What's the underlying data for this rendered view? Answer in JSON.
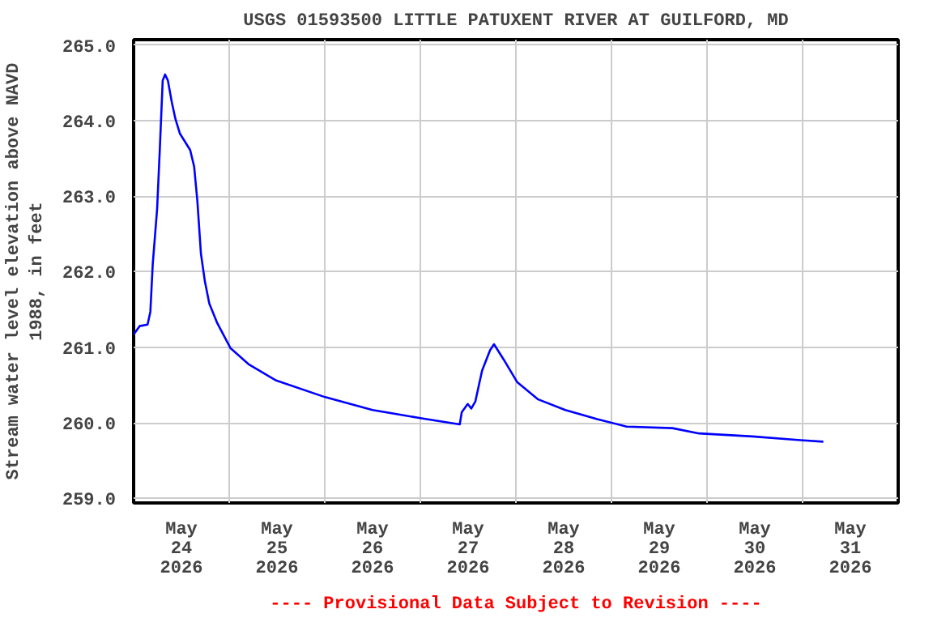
{
  "chart_data": {
    "type": "line",
    "title": "USGS 01593500 LITTLE PATUXENT RIVER AT GUILFORD, MD",
    "ylabel": "Stream water level elevation above NAVD\n1988, in feet",
    "annotations": [
      "---- Provisional Data Subject to Revision ----"
    ],
    "x": [
      "2026-05-24T00:00",
      "2026-05-24T01:30",
      "2026-05-24T03:30",
      "2026-05-24T04:12",
      "2026-05-24T04:48",
      "2026-05-24T05:54",
      "2026-05-24T06:36",
      "2026-05-24T07:18",
      "2026-05-24T07:54",
      "2026-05-24T08:36",
      "2026-05-24T09:36",
      "2026-05-24T10:30",
      "2026-05-24T11:36",
      "2026-05-24T12:54",
      "2026-05-24T14:12",
      "2026-05-24T15:12",
      "2026-05-24T16:00",
      "2026-05-24T16:54",
      "2026-05-24T17:54",
      "2026-05-24T19:00",
      "2026-05-24T21:00",
      "2026-05-25T00:18",
      "2026-05-25T05:00",
      "2026-05-25T11:48",
      "2026-05-26T00:06",
      "2026-05-26T12:00",
      "2026-05-27T00:18",
      "2026-05-27T09:54",
      "2026-05-27T10:24",
      "2026-05-27T11:54",
      "2026-05-27T12:48",
      "2026-05-27T13:48",
      "2026-05-27T15:30",
      "2026-05-27T17:30",
      "2026-05-27T18:30",
      "2026-05-27T20:54",
      "2026-05-28T00:18",
      "2026-05-28T05:36",
      "2026-05-28T12:24",
      "2026-05-28T20:24",
      "2026-05-29T03:48",
      "2026-05-29T15:18",
      "2026-05-29T22:00",
      "2026-05-30T11:24",
      "2026-05-30T23:30",
      "2026-05-31T05:12"
    ],
    "series": [
      {
        "color": "#0000ff",
        "values": [
          261.17,
          261.28,
          261.3,
          261.47,
          262.1,
          262.83,
          263.65,
          264.53,
          264.61,
          264.53,
          264.24,
          264.02,
          263.83,
          263.72,
          263.61,
          263.39,
          262.94,
          262.24,
          261.87,
          261.58,
          261.32,
          260.99,
          260.77,
          260.56,
          260.34,
          260.17,
          260.06,
          259.98,
          260.14,
          260.25,
          260.19,
          260.28,
          260.69,
          260.96,
          261.04,
          260.84,
          260.54,
          260.31,
          260.17,
          260.05,
          259.95,
          259.93,
          259.86,
          259.82,
          259.77,
          259.75
        ]
      }
    ],
    "xlim": [
      "2026-05-24T00:00",
      "2026-06-01T00:00"
    ],
    "xticks": [
      {
        "value": "2026-05-24T12:00",
        "label": "May\n24\n2026"
      },
      {
        "value": "2026-05-25T12:00",
        "label": "May\n25\n2026"
      },
      {
        "value": "2026-05-26T12:00",
        "label": "May\n26\n2026"
      },
      {
        "value": "2026-05-27T12:00",
        "label": "May\n27\n2026"
      },
      {
        "value": "2026-05-28T12:00",
        "label": "May\n28\n2026"
      },
      {
        "value": "2026-05-29T12:00",
        "label": "May\n29\n2026"
      },
      {
        "value": "2026-05-30T12:00",
        "label": "May\n30\n2026"
      },
      {
        "value": "2026-05-31T12:00",
        "label": "May\n31\n2026"
      },
      {
        "value": "2026-05-25T00:00",
        "label": null
      },
      {
        "value": "2026-05-26T00:00",
        "label": null
      },
      {
        "value": "2026-05-27T00:00",
        "label": null
      },
      {
        "value": "2026-05-28T00:00",
        "label": null
      },
      {
        "value": "2026-05-29T00:00",
        "label": null
      },
      {
        "value": "2026-05-30T00:00",
        "label": null
      },
      {
        "value": "2026-05-31T00:00",
        "label": null
      }
    ],
    "ylim": [
      258.94,
      265.07
    ],
    "yticks": [
      {
        "value": 259,
        "label": "259.0"
      },
      {
        "value": 260,
        "label": "260.0"
      },
      {
        "value": 261,
        "label": "261.0"
      },
      {
        "value": 262,
        "label": "262.0"
      },
      {
        "value": 263,
        "label": "263.0"
      },
      {
        "value": 264,
        "label": "264.0"
      },
      {
        "value": 265,
        "label": "265.0"
      }
    ],
    "grid": true,
    "marker": "none",
    "line_style": "solid"
  }
}
